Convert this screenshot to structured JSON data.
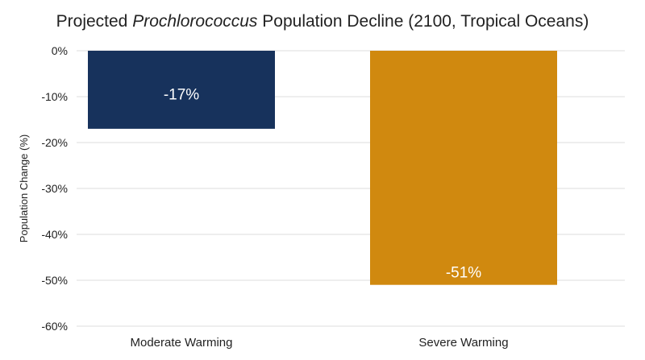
{
  "chart_data": {
    "type": "bar",
    "title_parts": [
      {
        "text": "Projected ",
        "italic": false
      },
      {
        "text": "Prochlorococcus",
        "italic": true
      },
      {
        "text": " Population Decline (2100, Tropical Oceans)",
        "italic": false
      }
    ],
    "categories": [
      "Moderate Warming",
      "Severe Warming"
    ],
    "values": [
      -17,
      -51
    ],
    "data_labels": [
      "-17%",
      "-51%"
    ],
    "colors": [
      "#17325c",
      "#d0890f"
    ],
    "xlabel": "",
    "ylabel": "Population Change (%)",
    "ylim": [
      -60,
      0
    ],
    "yticks": [
      0,
      -10,
      -20,
      -30,
      -40,
      -50,
      -60
    ],
    "ytick_labels": [
      "0%",
      "-10%",
      "-20%",
      "-30%",
      "-40%",
      "-50%",
      "-60%"
    ],
    "grid": true,
    "legend": "none"
  }
}
